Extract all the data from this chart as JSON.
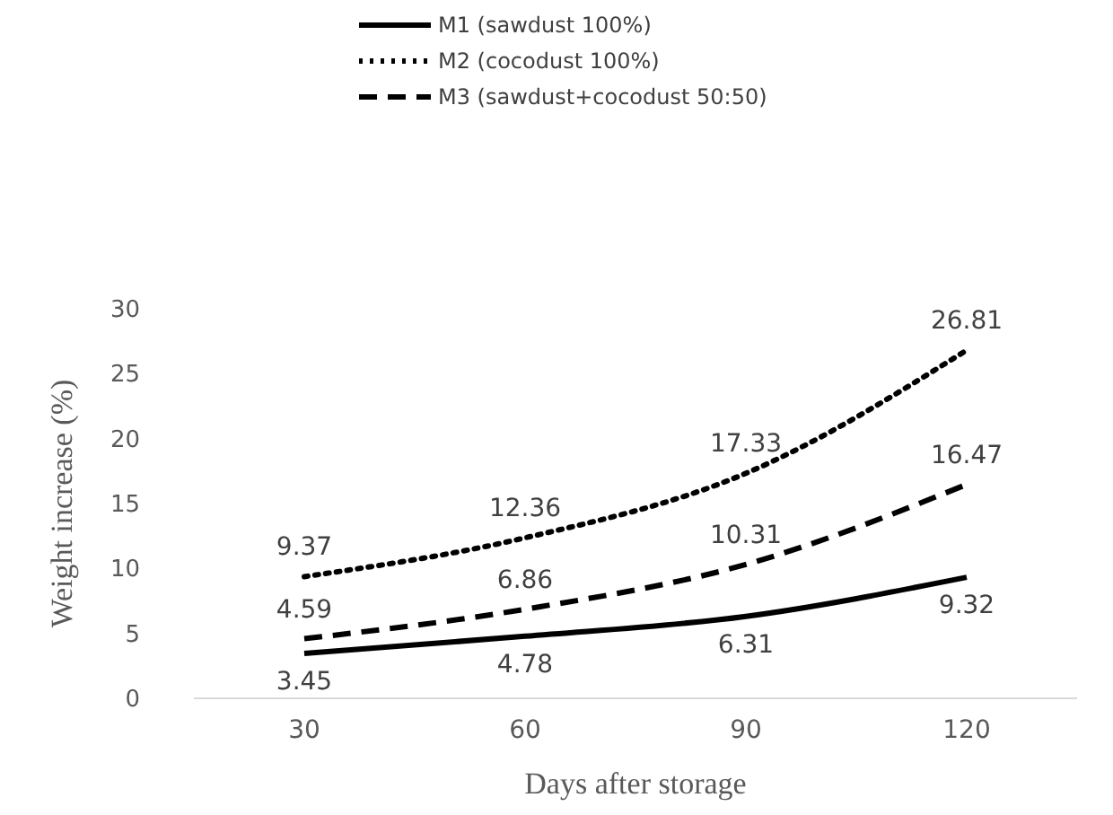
{
  "chart_data": {
    "type": "line",
    "xlabel": "Days after storage",
    "ylabel": "Weight increase (%)",
    "categories": [
      "30",
      "60",
      "90",
      "120"
    ],
    "series": [
      {
        "name": "M1 (sawdust 100%)",
        "color": "#000000",
        "line_style": "solid",
        "values": [
          3.45,
          4.78,
          6.31,
          9.32
        ]
      },
      {
        "name": "M2 (cocodust 100%)",
        "color": "#000000",
        "line_style": "dotted",
        "values": [
          9.37,
          12.36,
          17.33,
          26.81
        ]
      },
      {
        "name": "M3 (sawdust+cocodust 50:50)",
        "color": "#000000",
        "line_style": "dashed",
        "values": [
          4.59,
          6.86,
          10.31,
          16.47
        ]
      }
    ],
    "ylim": [
      0,
      30
    ],
    "yticks": [
      0,
      5,
      10,
      15,
      20,
      25,
      30
    ],
    "grid": false,
    "legend": "top",
    "data_labels": true,
    "marker": "none"
  }
}
